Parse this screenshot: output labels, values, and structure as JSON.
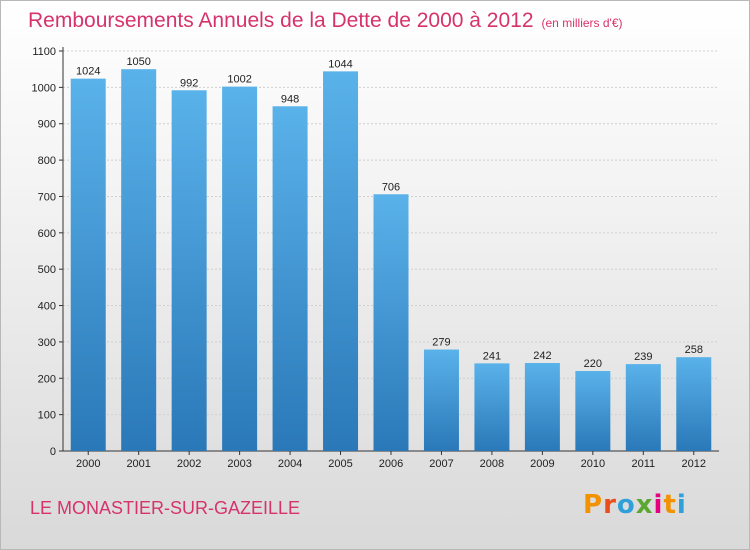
{
  "header": {
    "title": "Remboursements Annuels de la Dette de 2000 à 2012",
    "subtitle": "(en milliers d'€)"
  },
  "footer": {
    "commune": "LE MONASTIER-SUR-GAZEILLE",
    "brand": "Proxiti"
  },
  "colors": {
    "title": "#d6336c",
    "bar_top": "#5ab2ea",
    "bar_bottom": "#2a78b8",
    "grid": "#cfcfcf",
    "brand_letters": [
      "#f39200",
      "#e94e1b",
      "#2fa0d8",
      "#5aa832",
      "#e6007e",
      "#f39200",
      "#2fa0d8"
    ]
  },
  "chart_data": {
    "type": "bar",
    "title": "Remboursements Annuels de la Dette de 2000 à 2012",
    "subtitle": "(en milliers d'€)",
    "categories": [
      "2000",
      "2001",
      "2002",
      "2003",
      "2004",
      "2005",
      "2006",
      "2007",
      "2008",
      "2009",
      "2010",
      "2011",
      "2012"
    ],
    "values": [
      1024,
      1050,
      992,
      1002,
      948,
      1044,
      706,
      279,
      241,
      242,
      220,
      239,
      258
    ],
    "ylim": [
      0,
      1100
    ],
    "yticks": [
      0,
      100,
      200,
      300,
      400,
      500,
      600,
      700,
      800,
      900,
      1000,
      1100
    ],
    "grid": true,
    "legend": "none"
  }
}
